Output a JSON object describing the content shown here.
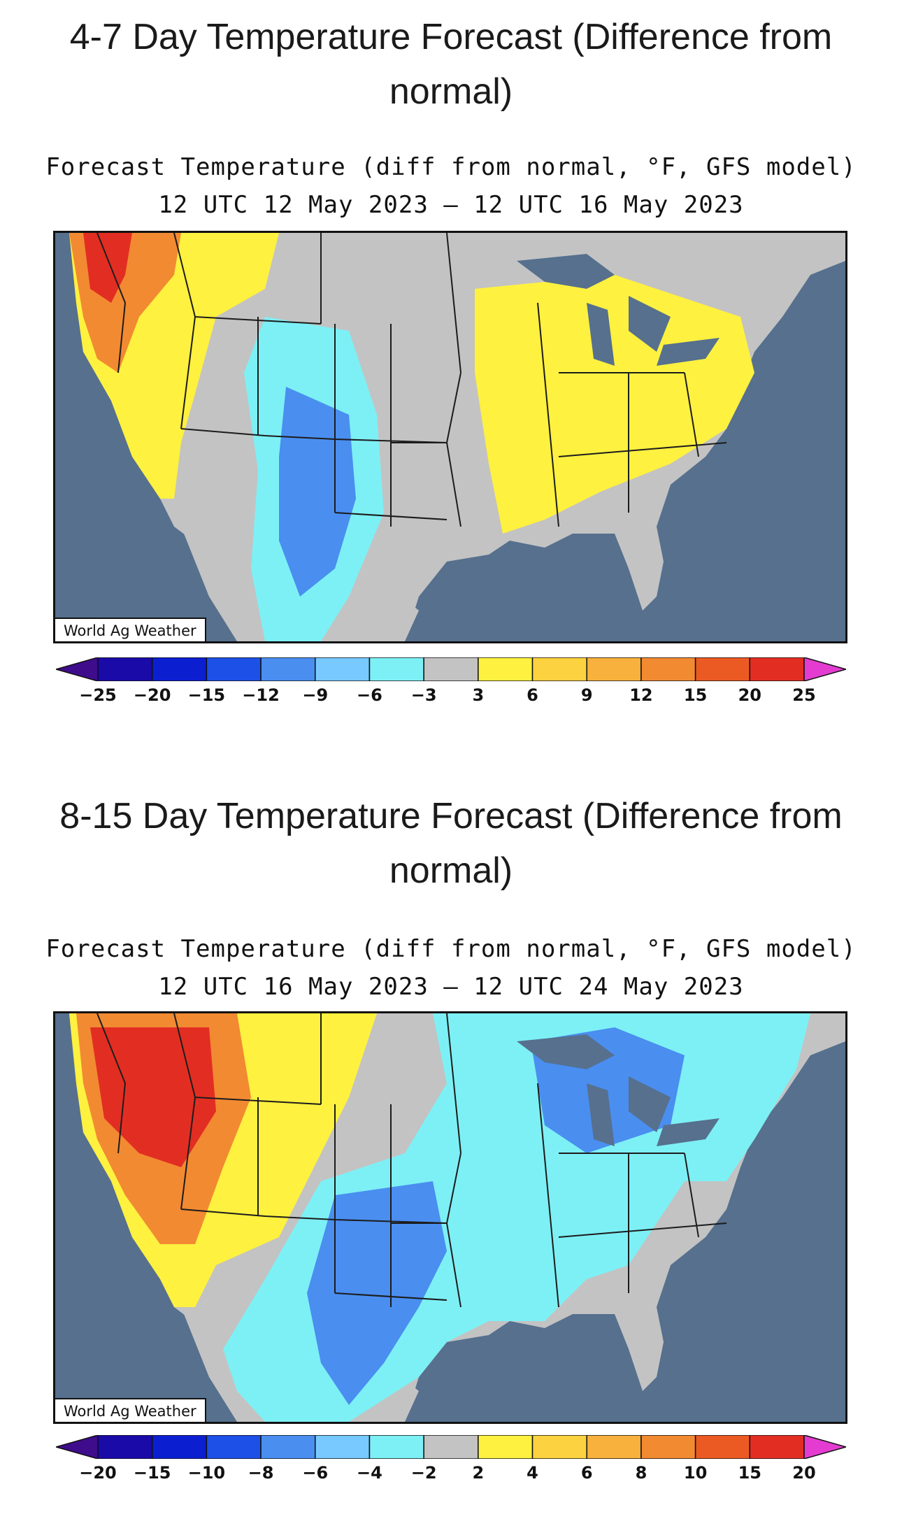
{
  "sections": [
    {
      "heading": "4-7 Day Temperature Forecast (Difference from normal)",
      "map_title": "Forecast Temperature (diff from normal, °F, GFS model)",
      "map_subtitle": "12 UTC 12 May 2023 – 12 UTC 16 May 2023",
      "credit": "World Ag Weather",
      "colorbar_colors": [
        "#3f0c8c",
        "#1a0aa8",
        "#0b1fd1",
        "#1c50e6",
        "#4a8ef0",
        "#78c9ff",
        "#7df0f5",
        "#c3c3c3",
        "#fff13f",
        "#fdd240",
        "#f8b13c",
        "#f28a32",
        "#ec5a23",
        "#e22e22",
        "#e43cd0"
      ],
      "colorbar_labels": [
        "-25",
        "-20",
        "-15",
        "-12",
        "-9",
        "-6",
        "-3",
        "3",
        "6",
        "9",
        "12",
        "15",
        "20",
        "25"
      ]
    },
    {
      "heading": "8-15 Day Temperature Forecast (Difference from normal)",
      "map_title": "Forecast Temperature (diff from normal, °F, GFS model)",
      "map_subtitle": "12 UTC 16 May 2023 – 12 UTC 24 May 2023",
      "credit": "World Ag Weather",
      "colorbar_colors": [
        "#3f0c8c",
        "#1a0aa8",
        "#0b1fd1",
        "#1c50e6",
        "#4a8ef0",
        "#78c9ff",
        "#7df0f5",
        "#c3c3c3",
        "#fff13f",
        "#fdd240",
        "#f8b13c",
        "#f28a32",
        "#ec5a23",
        "#e22e22",
        "#e43cd0"
      ],
      "colorbar_labels": [
        "-20",
        "-15",
        "-10",
        "-8",
        "-6",
        "-4",
        "-2",
        "2",
        "4",
        "6",
        "8",
        "10",
        "15",
        "20"
      ]
    }
  ],
  "map_colors": {
    "water": "#56708e",
    "land_neutral": "#c3c3c3",
    "border": "#1c1c1c"
  }
}
